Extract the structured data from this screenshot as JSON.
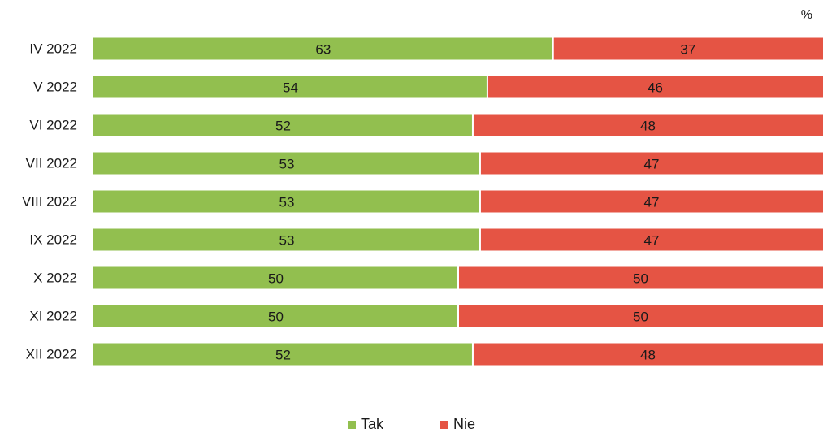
{
  "unit_label": "%",
  "colors": {
    "tak": "#92bf4f",
    "nie": "#e55444"
  },
  "chart_data": {
    "type": "bar",
    "orientation": "horizontal",
    "stacked": true,
    "percent": true,
    "categories": [
      "IV 2022",
      "V 2022",
      "VI 2022",
      "VII 2022",
      "VIII 2022",
      "IX 2022",
      "X 2022",
      "XI 2022",
      "XII 2022"
    ],
    "series": [
      {
        "name": "Tak",
        "values": [
          63,
          54,
          52,
          53,
          53,
          53,
          50,
          50,
          52
        ]
      },
      {
        "name": "Nie",
        "values": [
          37,
          46,
          48,
          47,
          47,
          47,
          50,
          50,
          48
        ]
      }
    ],
    "xlim": [
      0,
      100
    ],
    "grid": false,
    "legend_position": "bottom"
  }
}
